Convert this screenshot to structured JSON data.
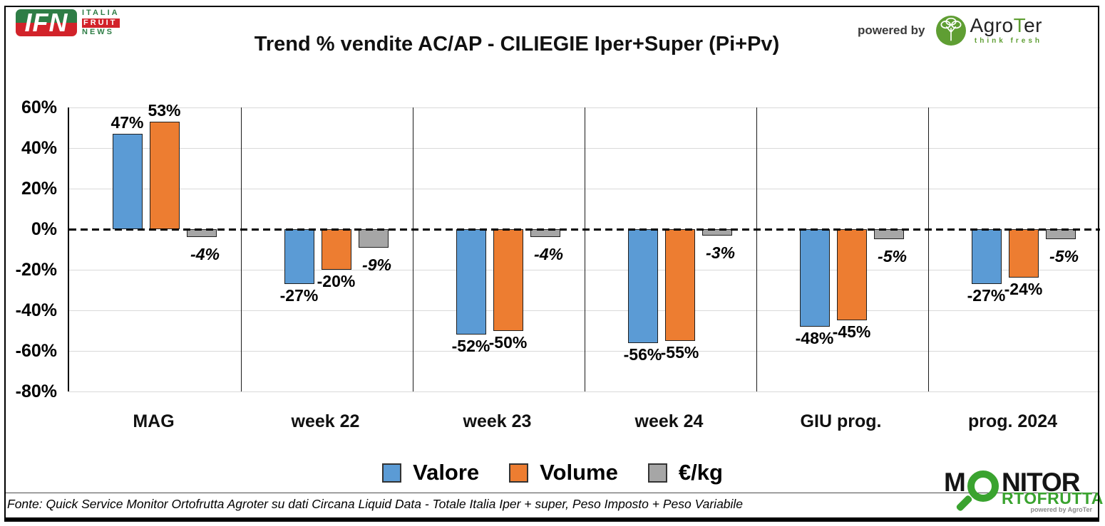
{
  "colors": {
    "ifn_green": "#2e7d46",
    "ifn_red": "#d2232a",
    "agroter_green": "#5f9e33",
    "monitor_green": "#3aa32f",
    "bar_blue": "#5B9BD5",
    "bar_orange": "#ED7D31",
    "bar_gray": "#A6A6A6"
  },
  "header": {
    "ifn_logo": {
      "acronym": "IFN",
      "word1": "ITALIA",
      "word2": "FRUIT",
      "word3": "NEWS"
    },
    "title": "Trend % vendite AC/AP - CILIEGIE Iper+Super (Pi+Pv)",
    "powered_by": "powered by",
    "agroter": {
      "name_prefix": "Agro",
      "name_t": "T",
      "name_suffix": "er",
      "tagline": "think fresh"
    }
  },
  "chart_data": {
    "type": "bar",
    "title": "Trend % vendite AC/AP - CILIEGIE Iper+Super (Pi+Pv)",
    "categories": [
      "MAG",
      "week 22",
      "week 23",
      "week 24",
      "GIU prog.",
      "prog. 2024"
    ],
    "series": [
      {
        "name": "Valore",
        "color": "#5B9BD5",
        "values": [
          47,
          -27,
          -52,
          -56,
          -48,
          -27
        ]
      },
      {
        "name": "Volume",
        "color": "#ED7D31",
        "values": [
          53,
          -20,
          -50,
          -55,
          -45,
          -24
        ]
      },
      {
        "name": "€/kg",
        "color": "#A6A6A6",
        "values": [
          -4,
          -9,
          -4,
          -3,
          -5,
          -5
        ]
      }
    ],
    "ylim": [
      -80,
      60
    ],
    "ytick_step": 20,
    "ytick_labels": [
      "60%",
      "40%",
      "20%",
      "0%",
      "-20%",
      "-40%",
      "-60%",
      "-80%"
    ],
    "grid": true,
    "zero_line": "dashed",
    "legend_position": "bottom",
    "value_label_format": "{v}%"
  },
  "footer": {
    "source": "Fonte: Quick Service Monitor Ortofrutta Agroter su dati Circana Liquid Data - Totale Italia Iper + super, Peso Imposto + Peso Variabile",
    "monitor_logo": {
      "line1_prefix": "M",
      "line1_suffix": "NITOR",
      "line2": "RTOFRUTTA",
      "powered": "powered by AgroTer"
    }
  }
}
